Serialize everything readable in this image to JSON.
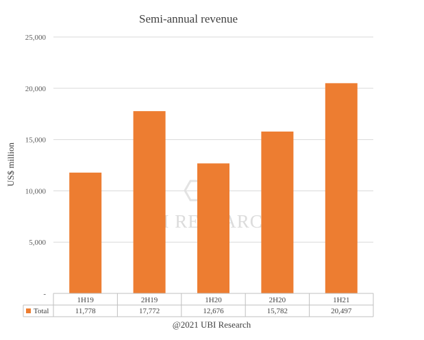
{
  "chart_data": {
    "type": "bar",
    "title": "Semi-annual revenue",
    "ylabel": "US$ million",
    "xlabel": "",
    "categories": [
      "1H19",
      "2H19",
      "1H20",
      "2H20",
      "1H21"
    ],
    "series": [
      {
        "name": "Total",
        "values": [
          11778,
          17772,
          12676,
          15782,
          20497
        ],
        "color": "#ED7D31"
      }
    ],
    "data_table": [
      "11,778",
      "17,772",
      "12,676",
      "15,782",
      "20,497"
    ],
    "ylim": [
      0,
      25000
    ],
    "yticks": [
      0,
      5000,
      10000,
      15000,
      20000,
      25000
    ],
    "ytick_labels": [
      "-",
      "5,000",
      "10,000",
      "15,000",
      "20,000",
      "25,000"
    ],
    "grid": true,
    "legend": "data-table",
    "footer": "@2021 UBI Research",
    "watermark": "UBI RESEARCH"
  }
}
